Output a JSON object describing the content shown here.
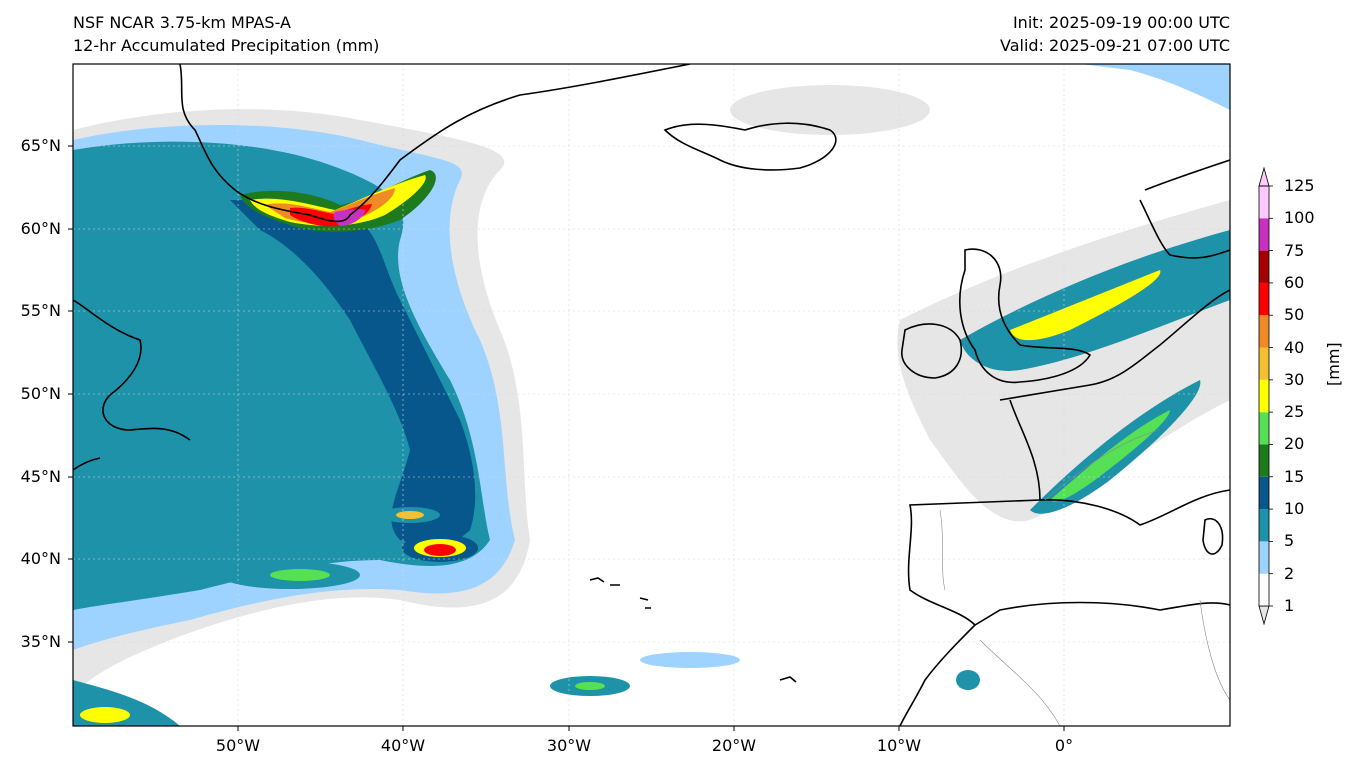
{
  "header": {
    "model_title": "NSF NCAR 3.75-km MPAS-A",
    "field_title": "12-hr Accumulated Precipitation (mm)",
    "init": "Init: 2025-09-19 00:00 UTC",
    "valid": "Valid: 2025-09-21 07:00 UTC"
  },
  "map": {
    "lat_labels": [
      "65°N",
      "60°N",
      "55°N",
      "50°N",
      "45°N",
      "40°N",
      "35°N"
    ],
    "lon_labels": [
      "50°W",
      "40°W",
      "30°W",
      "20°W",
      "10°W",
      "0°"
    ],
    "coastline_color": "#000000",
    "border_color": "#888888"
  },
  "colorbar": {
    "unit": "[mm]",
    "levels": [
      "1",
      "2",
      "5",
      "10",
      "15",
      "20",
      "25",
      "30",
      "40",
      "50",
      "60",
      "75",
      "100",
      "125"
    ],
    "colors": [
      "#e6e6e6",
      "#ffffff",
      "#9fd3ff",
      "#1d92a8",
      "#07578c",
      "#1e7a1e",
      "#55e055",
      "#ffff00",
      "#f5c030",
      "#f08a24",
      "#ff0000",
      "#a50000",
      "#c830c0",
      "#ffc8ff"
    ]
  },
  "chart_data": {
    "type": "heatmap",
    "title": "12-hr Accumulated Precipitation (mm)",
    "lat_ticks": [
      65,
      60,
      55,
      50,
      45,
      40,
      35
    ],
    "lon_ticks": [
      -50,
      -40,
      -30,
      -20,
      -10,
      0
    ],
    "lat_range": [
      30,
      70
    ],
    "lon_range": [
      -60,
      10
    ],
    "legend": "right",
    "colorbar_levels": [
      1,
      2,
      5,
      10,
      15,
      20,
      25,
      30,
      40,
      50,
      60,
      75,
      100,
      125
    ]
  }
}
